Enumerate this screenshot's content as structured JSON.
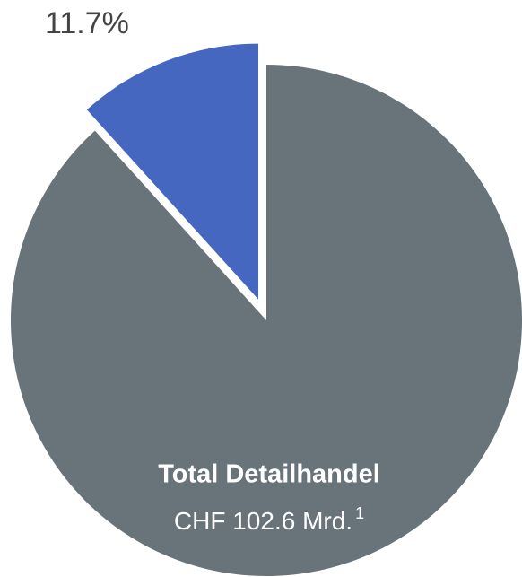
{
  "chart_data": {
    "type": "pie",
    "categories": [
      null,
      "Total Detailhandel"
    ],
    "values": [
      11.7,
      88.3
    ],
    "value_labels": [
      "11.7%",
      null
    ],
    "colors": [
      "#4667bf",
      "#68737a"
    ],
    "explode": [
      true,
      false
    ],
    "annotation": {
      "text": "CHF 102.6 Mrd.",
      "footnote": "1"
    }
  }
}
